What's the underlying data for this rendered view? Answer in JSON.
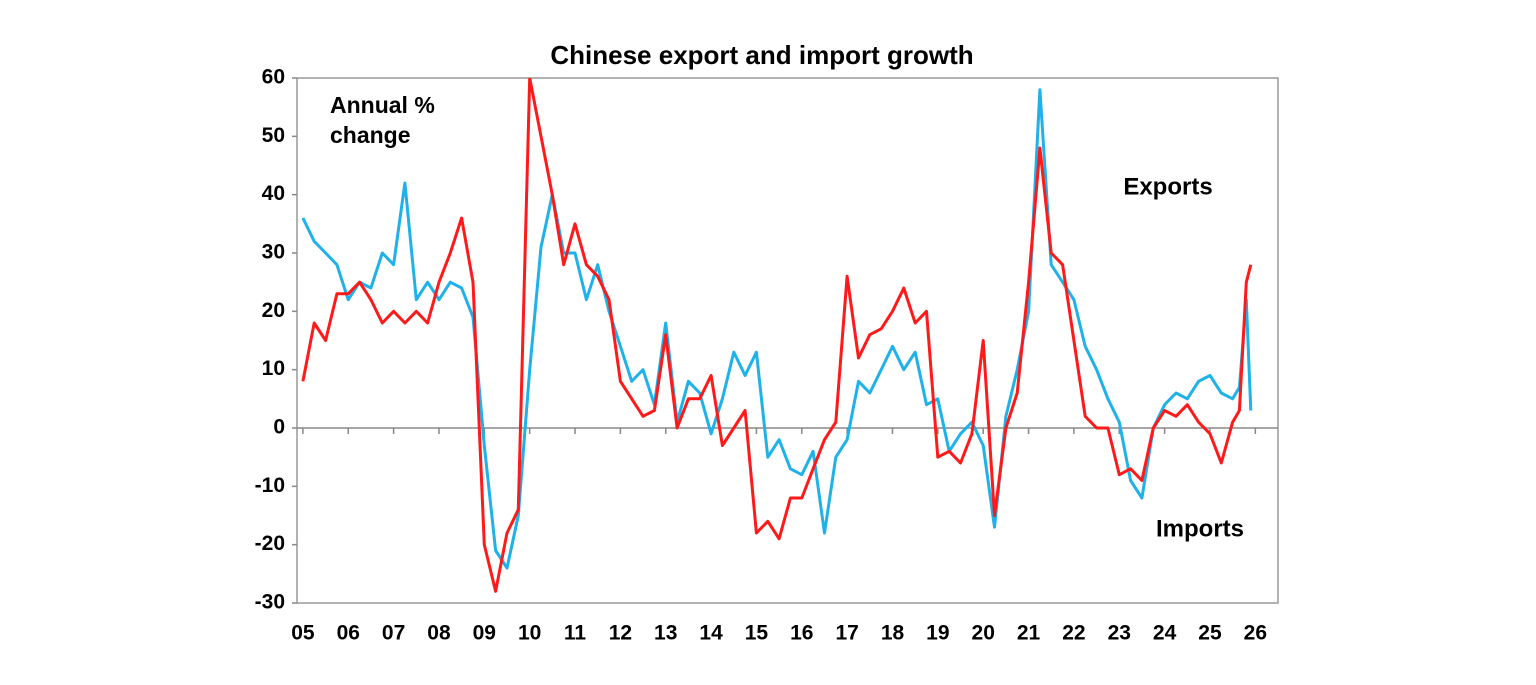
{
  "chart_data": {
    "type": "line",
    "title": "Chinese export and import growth",
    "annotation_lines": [
      "Annual %",
      "change"
    ],
    "x": [
      5,
      5.25,
      5.5,
      5.75,
      6,
      6.25,
      6.5,
      6.75,
      7,
      7.25,
      7.5,
      7.75,
      8,
      8.25,
      8.5,
      8.75,
      9,
      9.25,
      9.5,
      9.75,
      10,
      10.25,
      10.5,
      10.75,
      11,
      11.25,
      11.5,
      11.75,
      12,
      12.25,
      12.5,
      12.75,
      13,
      13.25,
      13.5,
      13.75,
      14,
      14.25,
      14.5,
      14.75,
      15,
      15.25,
      15.5,
      15.75,
      16,
      16.25,
      16.5,
      16.75,
      17,
      17.25,
      17.5,
      17.75,
      18,
      18.25,
      18.5,
      18.75,
      19,
      19.25,
      19.5,
      19.75,
      20,
      20.25,
      20.5,
      20.75,
      21,
      21.25,
      21.5,
      21.75,
      22,
      22.25,
      22.5,
      22.75,
      23,
      23.25,
      23.5,
      23.75,
      24,
      24.25,
      24.5,
      24.75,
      25,
      25.25,
      25.5,
      25.65,
      25.8,
      25.9
    ],
    "series": [
      {
        "name": "Exports",
        "color": "#1fb1ea",
        "values": [
          36,
          32,
          30,
          28,
          22,
          25,
          24,
          30,
          28,
          42,
          22,
          25,
          22,
          25,
          24,
          19,
          -3,
          -21,
          -24,
          -15,
          10,
          31,
          40,
          30,
          30,
          22,
          28,
          20,
          14,
          8,
          10,
          4,
          18,
          1,
          8,
          6,
          -1,
          5,
          13,
          9,
          13,
          -5,
          -2,
          -7,
          -8,
          -4,
          -18,
          -5,
          -2,
          8,
          6,
          10,
          14,
          10,
          13,
          4,
          5,
          -4,
          -1,
          1,
          -3,
          -17,
          2,
          10,
          20,
          58,
          28,
          25,
          22,
          14,
          10,
          5,
          1,
          -9,
          -12,
          0,
          4,
          6,
          5,
          8,
          9,
          6,
          5,
          7,
          22,
          3
        ]
      },
      {
        "name": "Imports",
        "color": "#ff1a1a",
        "values": [
          8,
          18,
          15,
          23,
          23,
          25,
          22,
          18,
          20,
          18,
          20,
          18,
          25,
          30,
          36,
          25,
          -20,
          -28,
          -18,
          -14,
          60,
          50,
          40,
          28,
          35,
          28,
          26,
          22,
          8,
          5,
          2,
          3,
          16,
          0,
          5,
          5,
          9,
          -3,
          0,
          3,
          -18,
          -16,
          -19,
          -12,
          -12,
          -7,
          -2,
          1,
          26,
          12,
          16,
          17,
          20,
          24,
          18,
          20,
          -5,
          -4,
          -6,
          -1,
          15,
          -15,
          0,
          6,
          25,
          48,
          30,
          28,
          15,
          2,
          0,
          0,
          -8,
          -7,
          -9,
          0,
          3,
          2,
          4,
          1,
          -1,
          -6,
          1,
          3,
          25,
          28
        ]
      }
    ],
    "xlim": [
      4.87,
      26.5
    ],
    "xticks": [
      {
        "value": 5,
        "label": "05"
      },
      {
        "value": 6,
        "label": "06"
      },
      {
        "value": 7,
        "label": "07"
      },
      {
        "value": 8,
        "label": "08"
      },
      {
        "value": 9,
        "label": "09"
      },
      10,
      11,
      12,
      13,
      14,
      15,
      16,
      17,
      18,
      19,
      20,
      21,
      22,
      23,
      24,
      25,
      26
    ],
    "ylim": [
      -30,
      60
    ],
    "yticks": [
      -30,
      -20,
      -10,
      0,
      10,
      20,
      30,
      40,
      50,
      60
    ],
    "grid": false
  }
}
